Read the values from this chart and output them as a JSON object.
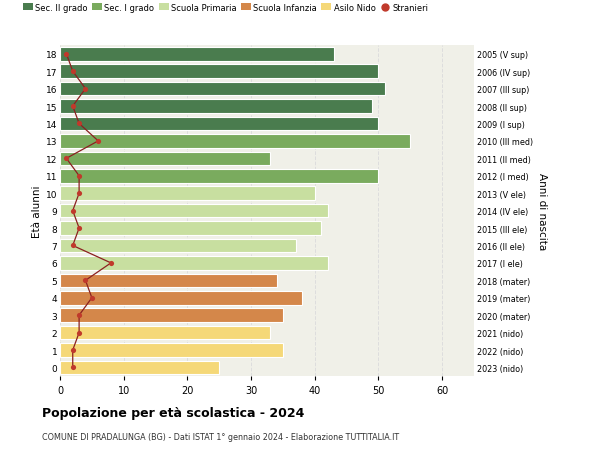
{
  "ages": [
    18,
    17,
    16,
    15,
    14,
    13,
    12,
    11,
    10,
    9,
    8,
    7,
    6,
    5,
    4,
    3,
    2,
    1,
    0
  ],
  "right_labels": [
    "2005 (V sup)",
    "2006 (IV sup)",
    "2007 (III sup)",
    "2008 (II sup)",
    "2009 (I sup)",
    "2010 (III med)",
    "2011 (II med)",
    "2012 (I med)",
    "2013 (V ele)",
    "2014 (IV ele)",
    "2015 (III ele)",
    "2016 (II ele)",
    "2017 (I ele)",
    "2018 (mater)",
    "2019 (mater)",
    "2020 (mater)",
    "2021 (nido)",
    "2022 (nido)",
    "2023 (nido)"
  ],
  "bar_values": [
    43,
    50,
    51,
    49,
    50,
    55,
    33,
    50,
    40,
    42,
    41,
    37,
    42,
    34,
    38,
    35,
    33,
    35,
    25
  ],
  "bar_colors": [
    "#4a7c4e",
    "#4a7c4e",
    "#4a7c4e",
    "#4a7c4e",
    "#4a7c4e",
    "#7aab5e",
    "#7aab5e",
    "#7aab5e",
    "#c8dfa0",
    "#c8dfa0",
    "#c8dfa0",
    "#c8dfa0",
    "#c8dfa0",
    "#d4874a",
    "#d4874a",
    "#d4874a",
    "#f5d878",
    "#f5d878",
    "#f5d878"
  ],
  "stranieri_values": [
    1,
    2,
    4,
    2,
    3,
    6,
    1,
    3,
    3,
    2,
    3,
    2,
    8,
    4,
    5,
    3,
    3,
    2,
    2
  ],
  "legend_labels": [
    "Sec. II grado",
    "Sec. I grado",
    "Scuola Primaria",
    "Scuola Infanzia",
    "Asilo Nido",
    "Stranieri"
  ],
  "legend_colors": [
    "#4a7c4e",
    "#7aab5e",
    "#c8dfa0",
    "#d4874a",
    "#f5d878",
    "#c0392b"
  ],
  "ylabel": "Età alunni",
  "ylabel_right": "Anni di nascita",
  "title": "Popolazione per età scolastica - 2024",
  "subtitle": "COMUNE DI PRADALUNGA (BG) - Dati ISTAT 1° gennaio 2024 - Elaborazione TUTTITALIA.IT",
  "xlim": [
    0,
    65
  ],
  "plot_bg": "#f0f0e8",
  "background_color": "#ffffff",
  "grid_color": "#dddddd",
  "bar_height": 0.78,
  "stranieri_color": "#c0392b",
  "stranieri_line_color": "#8b2020"
}
